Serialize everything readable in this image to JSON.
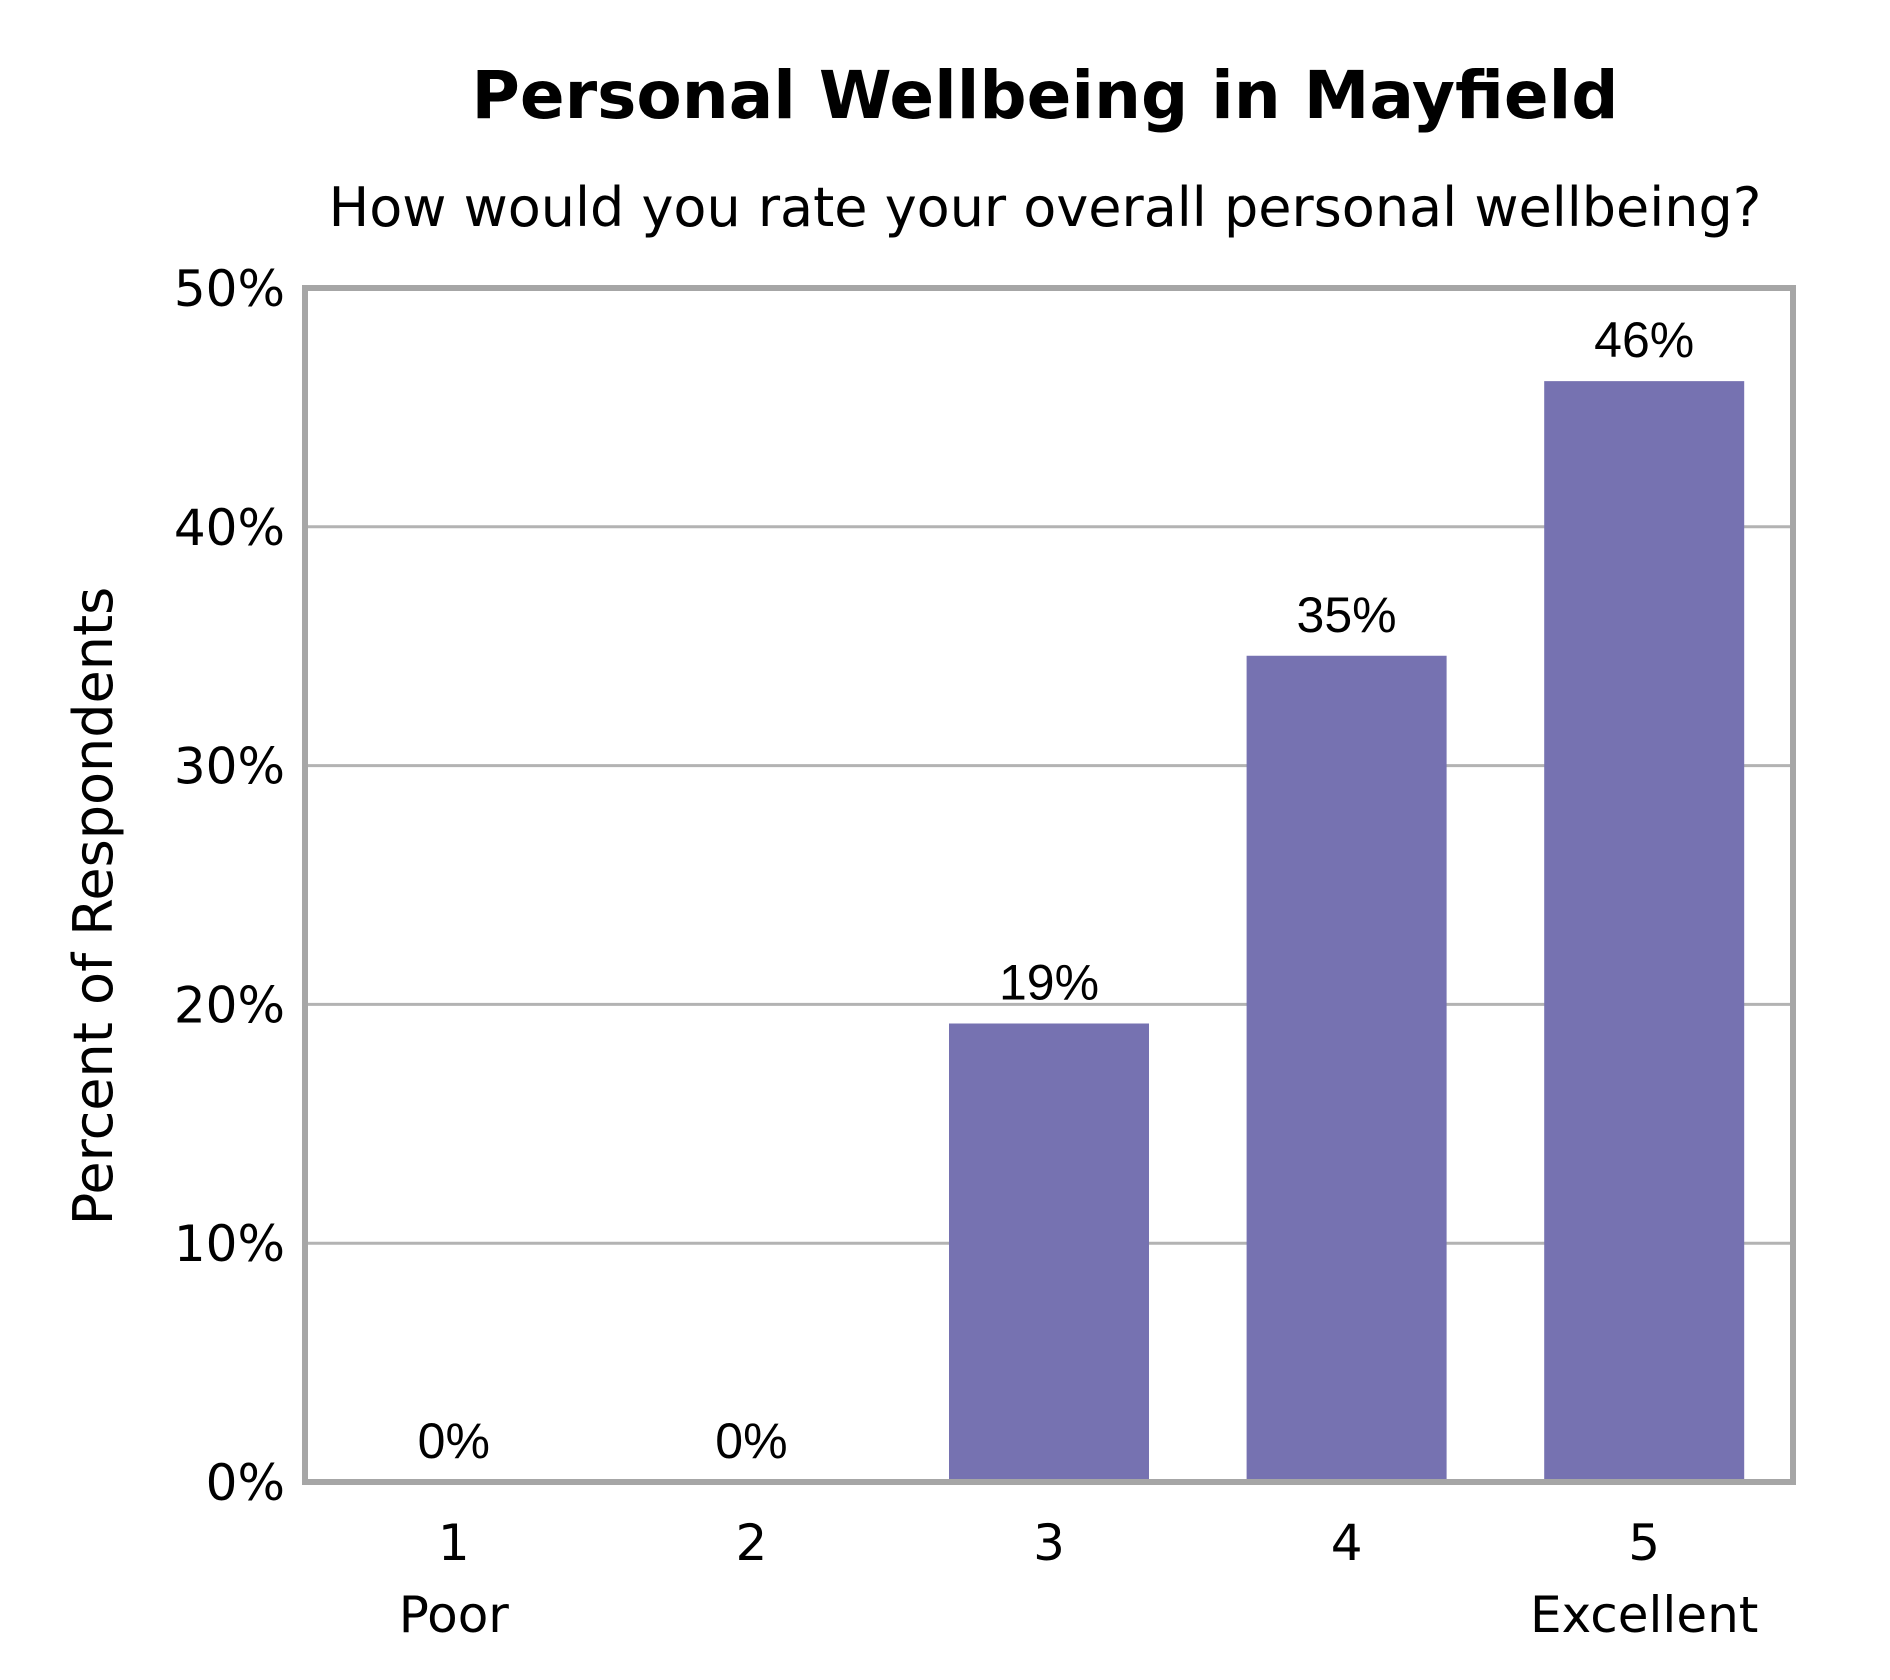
{
  "chart_data": {
    "type": "bar",
    "title": "Personal Wellbeing in Mayfield",
    "subtitle": "How would you rate your overall personal wellbeing?",
    "ylabel": "Percent of Respondents",
    "xlabel": "",
    "categories": [
      "1",
      "2",
      "3",
      "4",
      "5"
    ],
    "category_sublabels": [
      "Poor",
      "",
      "",
      "",
      "Excellent"
    ],
    "values": [
      0,
      0,
      19.2,
      34.6,
      46.1
    ],
    "value_labels": [
      "0%",
      "0%",
      "19%",
      "35%",
      "46%"
    ],
    "ylim": [
      0,
      50
    ],
    "yticks": [
      0,
      10,
      20,
      30,
      40,
      50
    ],
    "ytick_labels": [
      "0%",
      "10%",
      "20%",
      "30%",
      "40%",
      "50%"
    ],
    "grid": true,
    "legend": false,
    "colors": {
      "bar": "#7672b1",
      "grid": "#b3b3b3",
      "frame": "#a6a6a6",
      "text": "#000000"
    }
  }
}
